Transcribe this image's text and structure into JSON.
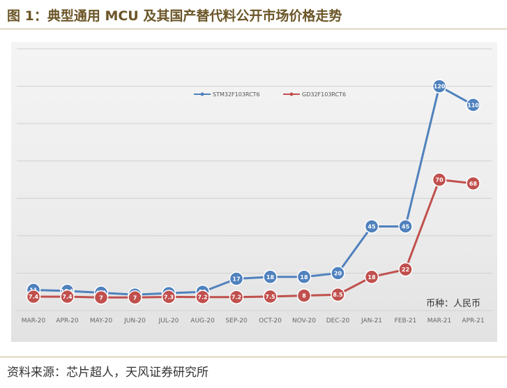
{
  "figure": {
    "title": "图 1：典型通用 MCU 及其国产替代料公开市场价格走势",
    "source": "资料来源：芯片超人，天风证券研究所"
  },
  "chart_data": {
    "type": "line",
    "title": "",
    "xlabel": "",
    "ylabel": "",
    "annotation": "币种：人民币",
    "categories": [
      "MAR-20",
      "APR-20",
      "MAY-20",
      "JUN-20",
      "JUL-20",
      "AUG-20",
      "SEP-20",
      "OCT-20",
      "NOV-20",
      "DEC-20",
      "JAN-21",
      "FEB-21",
      "MAR-21",
      "APR-21"
    ],
    "ylim": [
      0,
      140
    ],
    "grid": true,
    "legend_position": "top-center",
    "series": [
      {
        "name": "STM32F103RCT6",
        "color": "#4f81bd",
        "values": [
          11,
          10.5,
          9.5,
          8.5,
          9.3,
          10,
          17,
          18,
          18,
          20,
          45,
          45,
          120,
          110
        ],
        "labels": [
          "11",
          "10.5",
          "9.5",
          "8.5",
          "9.3",
          "10",
          "17",
          "18",
          "18",
          "20",
          "45",
          "45",
          "120",
          "110"
        ]
      },
      {
        "name": "GD32F103RCT6",
        "color": "#c0504d",
        "values": [
          7.4,
          7.4,
          7,
          7,
          7.3,
          7.2,
          7.2,
          7.5,
          8,
          8.5,
          18,
          22,
          70,
          68
        ],
        "labels": [
          "7.4",
          "7.4",
          "7",
          "7",
          "7.3",
          "7.2",
          "7.2",
          "7.5",
          "8",
          "8.5",
          "18",
          "22",
          "70",
          "68"
        ]
      }
    ]
  }
}
